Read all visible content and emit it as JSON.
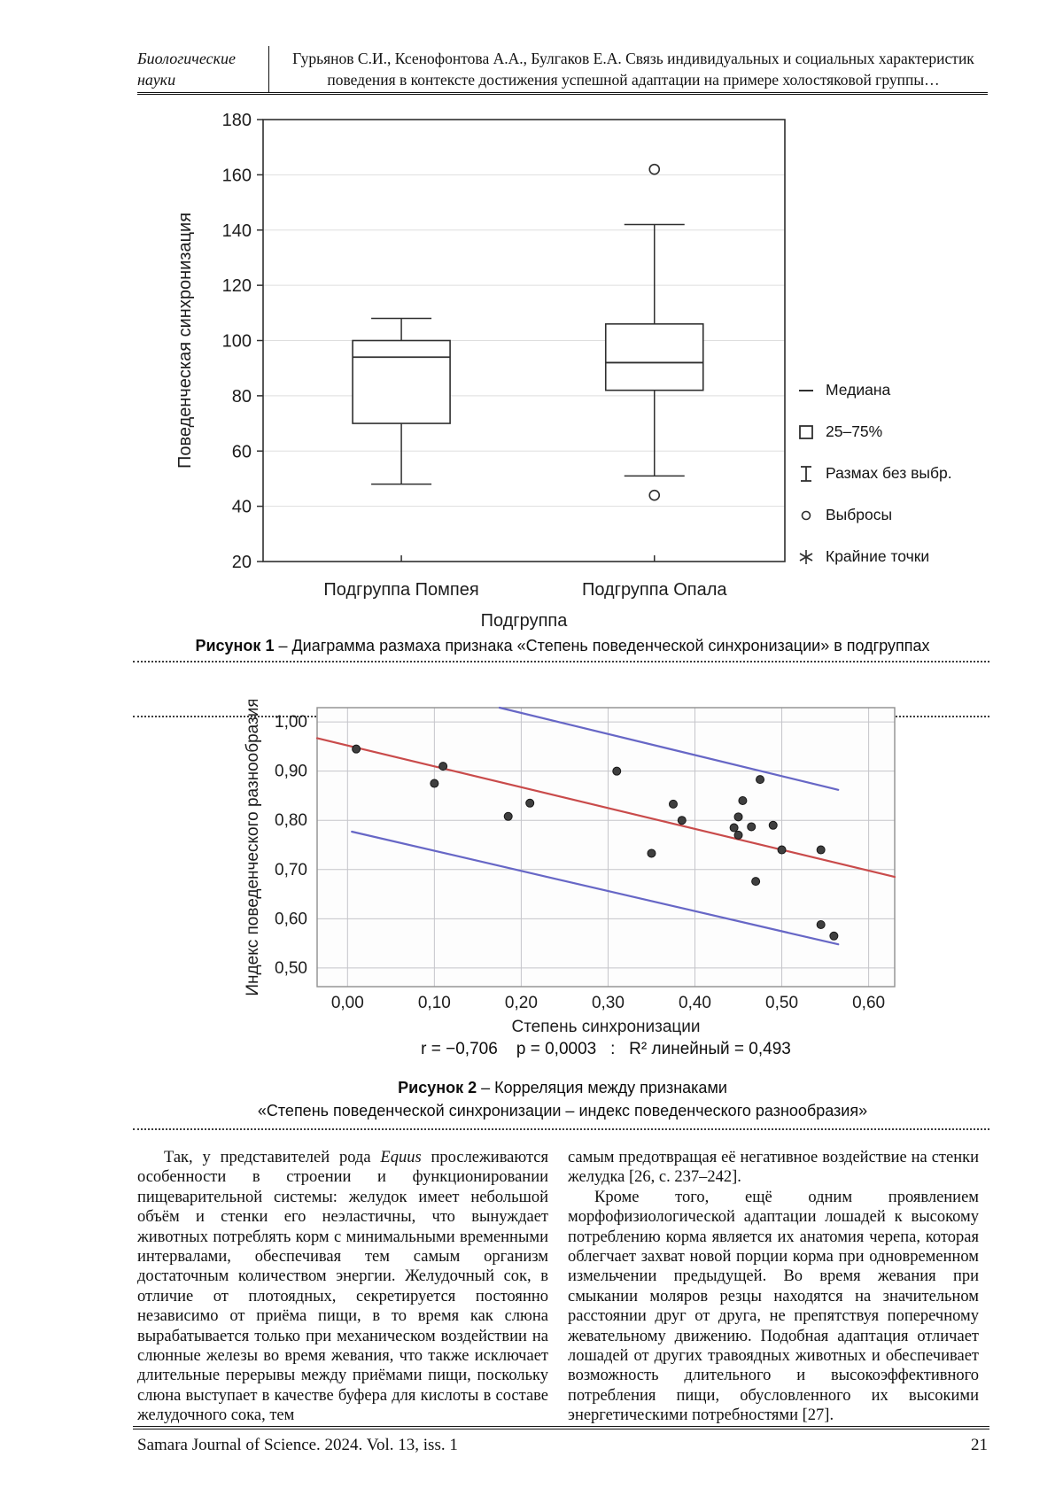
{
  "header": {
    "section_line1": "Биологические",
    "section_line2": "науки",
    "title_line1": "Гурьянов С.И., Ксенофонтова А.А., Булгаков Е.А. Связь индивидуальных и социальных характеристик",
    "title_line2": "поведения в контексте достижения успешной адаптации на примере холостяковой группы…"
  },
  "figure1": {
    "caption_bold": "Рисунок 1",
    "caption_rest": " – Диаграмма размаха признака «Степень поведенческой синхронизации» в подгруппах"
  },
  "figure2": {
    "stats": "r = −0,706    p = 0,0003   :   R² линейный = 0,493",
    "caption_bold": "Рисунок 2",
    "caption_rest": " – Корреляция между признаками",
    "caption_line2": "«Степень поведенческой синхронизации – индекс поведенческого разнообразия»"
  },
  "chart_data": [
    {
      "type": "box",
      "ylabel": "Поведенческая синхронизация",
      "xlabel": "Подгруппа",
      "ylim": [
        20,
        180
      ],
      "yticks": [
        20,
        40,
        60,
        80,
        100,
        120,
        140,
        160,
        180
      ],
      "grid": "horizontal",
      "legend_position": "right",
      "groups": [
        {
          "label": "Подгруппа Помпея",
          "q1": 70,
          "median": 94,
          "q3": 100,
          "whisker_low": 48,
          "whisker_high": 108,
          "outliers": []
        },
        {
          "label": "Подгруппа Опала",
          "q1": 82,
          "median": 92,
          "q3": 106,
          "whisker_low": 51,
          "whisker_high": 142,
          "outliers": [
            162,
            44
          ]
        }
      ],
      "legend": [
        "Медиана",
        "25–75%",
        "Размах без выбр.",
        "Выбросы",
        "Крайние точки"
      ]
    },
    {
      "type": "scatter",
      "xlabel": "Степень синхронизации",
      "ylabel": "Индекс поведенческого разнообразия",
      "xlim": [
        -0.035,
        0.63
      ],
      "ylim": [
        0.462,
        1.029
      ],
      "grid": "both",
      "xticks": [
        {
          "v": 0.0,
          "label": "0,00"
        },
        {
          "v": 0.1,
          "label": "0,10"
        },
        {
          "v": 0.2,
          "label": "0,20"
        },
        {
          "v": 0.3,
          "label": "0,30"
        },
        {
          "v": 0.4,
          "label": "0,40"
        },
        {
          "v": 0.5,
          "label": "0,50"
        },
        {
          "v": 0.6,
          "label": "0,60"
        }
      ],
      "yticks": [
        {
          "v": 0.5,
          "label": "0,50"
        },
        {
          "v": 0.6,
          "label": "0,60"
        },
        {
          "v": 0.7,
          "label": "0,70"
        },
        {
          "v": 0.8,
          "label": "0,80"
        },
        {
          "v": 0.9,
          "label": "0,90"
        },
        {
          "v": 1.0,
          "label": "1,00"
        }
      ],
      "points": [
        [
          0.01,
          0.945
        ],
        [
          0.11,
          0.91
        ],
        [
          0.1,
          0.875
        ],
        [
          0.21,
          0.835
        ],
        [
          0.185,
          0.808
        ],
        [
          0.31,
          0.9
        ],
        [
          0.35,
          0.733
        ],
        [
          0.375,
          0.833
        ],
        [
          0.385,
          0.8
        ],
        [
          0.445,
          0.785
        ],
        [
          0.45,
          0.77
        ],
        [
          0.45,
          0.807
        ],
        [
          0.455,
          0.84
        ],
        [
          0.465,
          0.787
        ],
        [
          0.475,
          0.883
        ],
        [
          0.47,
          0.676
        ],
        [
          0.49,
          0.79
        ],
        [
          0.5,
          0.74
        ],
        [
          0.545,
          0.74
        ],
        [
          0.545,
          0.588
        ],
        [
          0.56,
          0.565
        ]
      ],
      "regression_line": {
        "x1": -0.035,
        "y1": 0.967,
        "x2": 0.63,
        "y2": 0.685,
        "color": "#c94b4b"
      },
      "band_lines": [
        {
          "x1": 0.175,
          "y1": 1.029,
          "x2": 0.565,
          "y2": 0.862
        },
        {
          "x1": 0.005,
          "y1": 0.777,
          "x2": 0.565,
          "y2": 0.548
        }
      ],
      "band_color": "#6767c6",
      "point_color": "#3f3f3f",
      "r": "-0,706",
      "p": "0,0003",
      "r2_linear": "0,493"
    }
  ],
  "body": {
    "col1_before": "Так, у представителей рода ",
    "col1_italic": "Equus",
    "col1_after": " прослеживаются особенности в строении и функционировании пищеварительной системы: желудок имеет небольшой объём и стенки его неэластичны, что вынуждает животных потреблять корм с минимальными временными интервалами, обеспечивая тем самым организм достаточным количеством энергии. Желудочный сок, в отличие от плотоядных, секретируется постоянно независимо от приёма пищи, в то время как слюна вырабатывается только при механическом воздействии на слюнные железы во время жевания, что также исключает длительные перерывы между приёмами пищи, поскольку слюна выступает в качестве буфера для кислоты в составе желудочного сока, тем",
    "col2_p1": "самым предотвращая её негативное воздействие на стенки желудка [26, с. 237–242].",
    "col2_p2": "Кроме того, ещё одним проявлением морфофизиологической адаптации лошадей к высокому потреблению корма является их анатомия черепа, которая облегчает захват новой порции корма при одновременном измельчении предыдущей. Во время жевания при смыкании моляров резцы находятся на значительном расстоянии друг от друга, не препятствуя поперечному жевательному движению. Подобная адаптация отличает лошадей от других травоядных животных и обеспечивает возможность длительного и высокоэффективного потребления пищи, обусловленного их высокими энергетическими потребностями [27]."
  },
  "footer": {
    "journal": "Samara Journal of Science. 2024. Vol. 13, iss. 1",
    "page_number": "21"
  }
}
